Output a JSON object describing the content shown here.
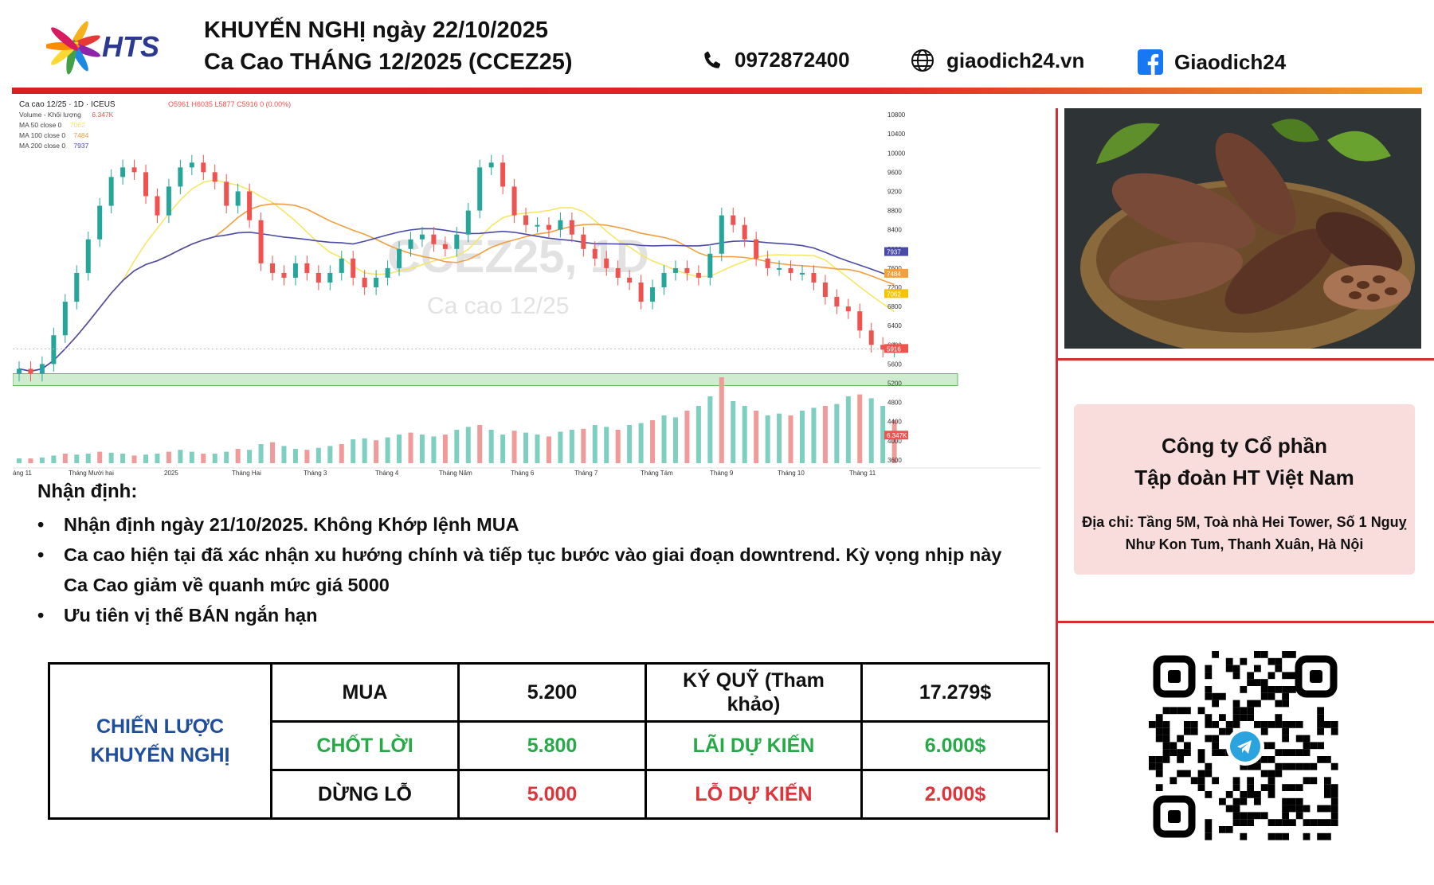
{
  "header": {
    "brand": "HTS",
    "title_line1": "KHUYẾN NGHỊ ngày 22/10/2025",
    "title_line2": "Ca Cao THÁNG 12/2025 (CCEZ25)",
    "phone": "0972872400",
    "website": "giaodich24.vn",
    "facebook": "Giaodich24",
    "icons": [
      "phone-icon",
      "globe-icon",
      "facebook-icon"
    ]
  },
  "chart_data": {
    "type": "candlestick",
    "symbol_line": "Ca cao 12/25 · 1D · ICEUS",
    "ohlc_line": "O5961 H6035 L5877 C5916 0 (0.00%)",
    "legend": [
      {
        "label": "Volume - Khối lượng",
        "value": "6.347K",
        "color": "#ef5350"
      },
      {
        "label": "MA 50 close 0",
        "value": "7062",
        "color": "#f5e663"
      },
      {
        "label": "MA 100 close 0",
        "value": "7484",
        "color": "#f0a040"
      },
      {
        "label": "MA 200 close 0",
        "value": "7937",
        "color": "#4a4aa8"
      }
    ],
    "watermark_symbol": "CCEZ25, 1D",
    "watermark_name": "Ca cao 12/25",
    "y_ticks": [
      10800,
      10400,
      10000,
      9600,
      9200,
      8800,
      8400,
      8000,
      7600,
      7200,
      6800,
      6400,
      6000,
      5600,
      5200,
      4800,
      4400,
      4000,
      3600
    ],
    "ylim": [
      3400,
      11000
    ],
    "x_ticks": [
      "áng 11",
      "Tháng Mười hai",
      "2025",
      "Tháng Hai",
      "Tháng 3",
      "Tháng 4",
      "Tháng Năm",
      "Tháng 6",
      "Tháng 7",
      "Tháng Tám",
      "Tháng 9",
      "Tháng 10",
      "Tháng 11"
    ],
    "price_badges": [
      {
        "value": "7937",
        "color": "#4a4aa8"
      },
      {
        "value": "7484",
        "color": "#f0a040"
      },
      {
        "value": "7062",
        "color": "#f5c400"
      },
      {
        "value": "5916",
        "color": "#ef5350"
      },
      {
        "value": "6.347K",
        "color": "#ef5350"
      }
    ],
    "close_path": [
      5500,
      5400,
      5600,
      6200,
      6900,
      7500,
      8200,
      8900,
      9500,
      9700,
      9600,
      9100,
      8700,
      9300,
      9700,
      9800,
      9600,
      9400,
      8900,
      9200,
      8600,
      7700,
      7500,
      7400,
      7700,
      7500,
      7300,
      7500,
      7800,
      7400,
      7200,
      7400,
      7600,
      8000,
      8200,
      8300,
      8100,
      8000,
      8300,
      8800,
      9700,
      9800,
      9300,
      8700,
      8500,
      8500,
      8400,
      8600,
      8300,
      8000,
      7800,
      7600,
      7400,
      7300,
      6900,
      7200,
      7500,
      7600,
      7500,
      7400,
      7900,
      8700,
      8500,
      8200,
      7800,
      7600,
      7600,
      7500,
      7500,
      7300,
      7000,
      6800,
      6700,
      6300,
      6000,
      5900,
      5900
    ],
    "support_zone": [
      5150,
      5400
    ],
    "volume_levels": [
      0.05,
      0.05,
      0.06,
      0.08,
      0.1,
      0.09,
      0.1,
      0.12,
      0.11,
      0.1,
      0.08,
      0.09,
      0.1,
      0.12,
      0.14,
      0.12,
      0.1,
      0.1,
      0.12,
      0.15,
      0.14,
      0.2,
      0.22,
      0.18,
      0.15,
      0.14,
      0.16,
      0.18,
      0.2,
      0.25,
      0.26,
      0.24,
      0.27,
      0.3,
      0.32,
      0.3,
      0.28,
      0.3,
      0.35,
      0.38,
      0.4,
      0.35,
      0.3,
      0.34,
      0.32,
      0.3,
      0.28,
      0.33,
      0.35,
      0.36,
      0.4,
      0.38,
      0.35,
      0.4,
      0.42,
      0.45,
      0.5,
      0.48,
      0.55,
      0.6,
      0.7,
      0.9,
      0.65,
      0.6,
      0.55,
      0.5,
      0.52,
      0.5,
      0.55,
      0.58,
      0.6,
      0.62,
      0.7,
      0.72,
      0.68,
      0.6,
      0.45
    ]
  },
  "analysis": {
    "title": "Nhận định:",
    "bullets": [
      "Nhận định ngày 21/10/2025. Không Khớp lệnh MUA",
      "Ca cao hiện tại đã xác nhận xu hướng chính và tiếp tục bước vào giai đoạn downtrend. Kỳ vọng nhịp này Ca Cao giảm về quanh mức giá 5000",
      "Ưu tiên vị thế BÁN ngắn hạn"
    ]
  },
  "strategy": {
    "label": "CHIẾN LƯỢC KHUYẾN NGHỊ",
    "rows": [
      {
        "action": "MUA",
        "price": "5.200",
        "metric": "KÝ QUỸ (Tham khảo)",
        "amount": "17.279$"
      },
      {
        "action": "CHỐT LỜI",
        "price": "5.800",
        "metric": "LÃI DỰ KIẾN",
        "amount": "6.000$"
      },
      {
        "action": "DỪNG LỖ",
        "price": "5.000",
        "metric": "LỖ DỰ KIẾN",
        "amount": "2.000$"
      }
    ]
  },
  "company": {
    "name_line1": "Công ty Cổ phần",
    "name_line2": "Tập đoàn HT Việt Nam",
    "address": "Địa chỉ: Tầng 5M, Toà nhà Hei Tower, Số 1 Nguỵ Như Kon Tum, Thanh Xuân, Hà Nội"
  },
  "colors": {
    "accent_red": "#d92b32",
    "brand_blue": "#2b3990",
    "profit_green": "#27a948",
    "loss_red": "#e0333a",
    "strategy_blue": "#1f4e9c"
  }
}
